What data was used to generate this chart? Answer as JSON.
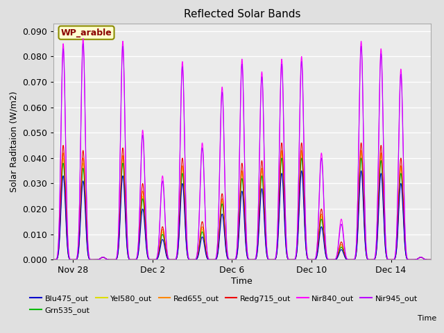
{
  "title": "Reflected Solar Bands",
  "xlabel": "Time",
  "ylabel": "Solar Raditaion (W/m2)",
  "annotation": "WP_arable",
  "annotation_box_color": "#ffffd0",
  "annotation_text_color": "#8b0000",
  "annotation_border_color": "#8b8b00",
  "ylim": [
    0,
    0.093
  ],
  "yticks": [
    0.0,
    0.01,
    0.02,
    0.03,
    0.04,
    0.05,
    0.06,
    0.07,
    0.08,
    0.09
  ],
  "fig_bg_color": "#e0e0e0",
  "plot_bg_color": "#ebebeb",
  "series": [
    {
      "name": "Blu475_out",
      "color": "#0000cc",
      "linewidth": 0.8,
      "zorder": 5
    },
    {
      "name": "Grn535_out",
      "color": "#00bb00",
      "linewidth": 0.8,
      "zorder": 4
    },
    {
      "name": "Yel580_out",
      "color": "#dddd00",
      "linewidth": 0.8,
      "zorder": 3
    },
    {
      "name": "Red655_out",
      "color": "#ff8800",
      "linewidth": 0.8,
      "zorder": 3
    },
    {
      "name": "Redg715_out",
      "color": "#ee0000",
      "linewidth": 0.8,
      "zorder": 4
    },
    {
      "name": "Nir840_out",
      "color": "#ff00ff",
      "linewidth": 0.8,
      "zorder": 6
    },
    {
      "name": "Nir945_out",
      "color": "#bb00ff",
      "linewidth": 0.8,
      "zorder": 7
    }
  ],
  "x_tick_labels": [
    "Nov 28",
    "Dec 2",
    "Dec 6",
    "Dec 10",
    "Dec 14"
  ],
  "legend_order": [
    "Blu475_out",
    "Grn535_out",
    "Yel580_out",
    "Red655_out",
    "Redg715_out",
    "Nir840_out",
    "Nir945_out"
  ],
  "num_days": 19,
  "points_per_day": 96,
  "nir840_peaks": [
    0.085,
    0.087,
    0.001,
    0.086,
    0.051,
    0.033,
    0.078,
    0.046,
    0.068,
    0.079,
    0.074,
    0.079,
    0.08,
    0.042,
    0.016,
    0.086,
    0.083,
    0.075,
    0.001
  ],
  "nir945_peaks": [
    0.083,
    0.085,
    0.001,
    0.084,
    0.049,
    0.031,
    0.076,
    0.044,
    0.066,
    0.077,
    0.072,
    0.077,
    0.078,
    0.04,
    0.014,
    0.084,
    0.081,
    0.073,
    0.001
  ],
  "blu_peaks": [
    0.033,
    0.031,
    0.001,
    0.033,
    0.02,
    0.008,
    0.03,
    0.009,
    0.018,
    0.027,
    0.028,
    0.034,
    0.035,
    0.013,
    0.004,
    0.035,
    0.034,
    0.03,
    0.001
  ],
  "grn_peaks": [
    0.038,
    0.036,
    0.001,
    0.038,
    0.024,
    0.01,
    0.034,
    0.011,
    0.022,
    0.032,
    0.033,
    0.04,
    0.04,
    0.016,
    0.005,
    0.04,
    0.039,
    0.034,
    0.001
  ],
  "yel_peaks": [
    0.04,
    0.038,
    0.001,
    0.04,
    0.025,
    0.011,
    0.036,
    0.012,
    0.023,
    0.034,
    0.035,
    0.042,
    0.042,
    0.017,
    0.005,
    0.042,
    0.041,
    0.036,
    0.001
  ],
  "red_peaks": [
    0.042,
    0.04,
    0.001,
    0.041,
    0.027,
    0.012,
    0.037,
    0.013,
    0.024,
    0.035,
    0.036,
    0.043,
    0.043,
    0.018,
    0.006,
    0.043,
    0.042,
    0.037,
    0.001
  ],
  "redg_peaks": [
    0.045,
    0.043,
    0.001,
    0.044,
    0.03,
    0.013,
    0.04,
    0.015,
    0.026,
    0.038,
    0.039,
    0.046,
    0.046,
    0.02,
    0.007,
    0.046,
    0.045,
    0.04,
    0.001
  ]
}
